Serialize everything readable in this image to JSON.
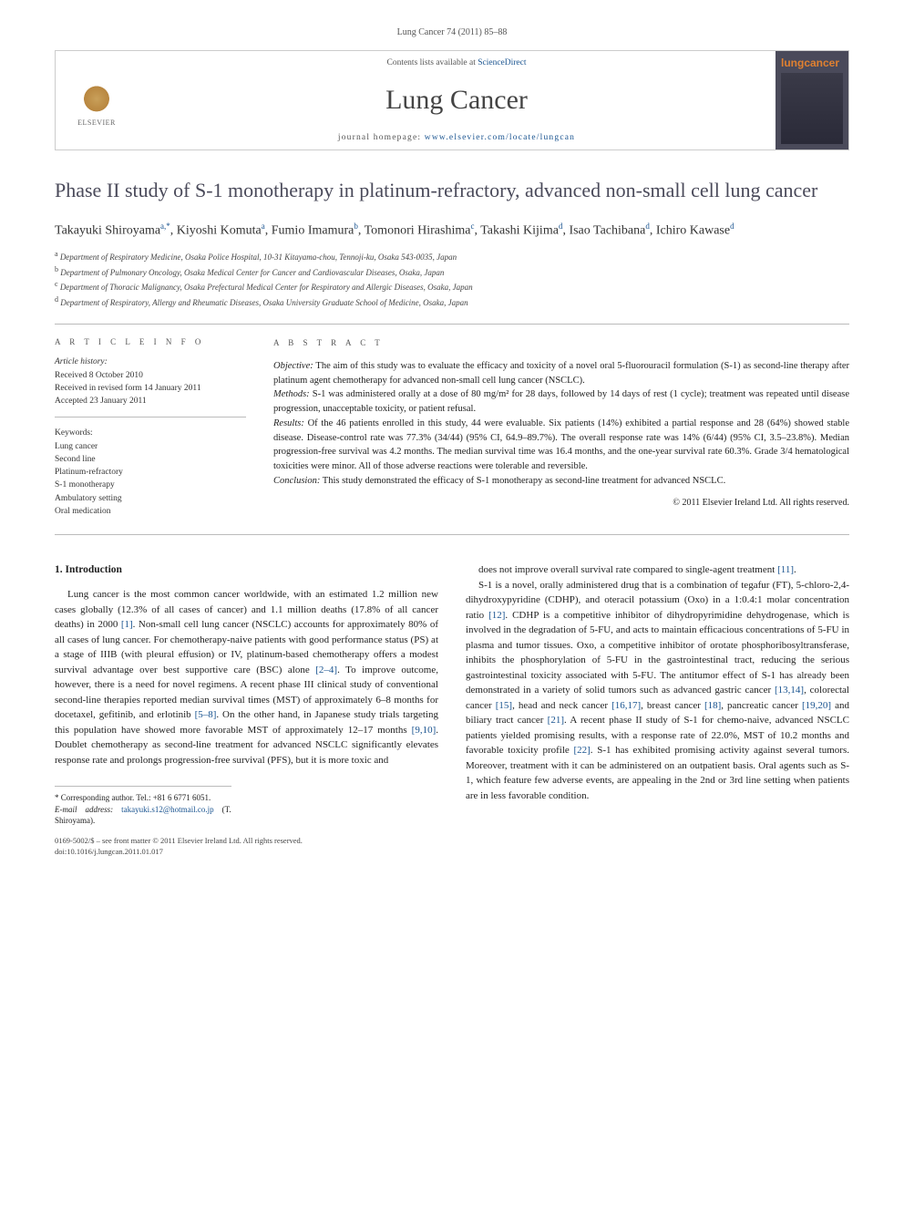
{
  "citation": "Lung Cancer 74 (2011) 85–88",
  "banner": {
    "publisher": "ELSEVIER",
    "contents_prefix": "Contents lists available at ",
    "contents_link": "ScienceDirect",
    "journal": "Lung Cancer",
    "homepage_prefix": "journal homepage: ",
    "homepage_url": "www.elsevier.com/locate/lungcan",
    "cover_label": "lungcancer"
  },
  "title": "Phase II study of S-1 monotherapy in platinum-refractory, advanced non-small cell lung cancer",
  "authors_html": "Takayuki Shiroyama<sup>a,*</sup>, Kiyoshi Komuta<sup>a</sup>, Fumio Imamura<sup>b</sup>, Tomonori Hirashima<sup>c</sup>, Takashi Kijima<sup>d</sup>, Isao Tachibana<sup>d</sup>, Ichiro Kawase<sup>d</sup>",
  "affiliations": [
    "a Department of Respiratory Medicine, Osaka Police Hospital, 10-31 Kitayama-chou, Tennoji-ku, Osaka 543-0035, Japan",
    "b Department of Pulmonary Oncology, Osaka Medical Center for Cancer and Cardiovascular Diseases, Osaka, Japan",
    "c Department of Thoracic Malignancy, Osaka Prefectural Medical Center for Respiratory and Allergic Diseases, Osaka, Japan",
    "d Department of Respiratory, Allergy and Rheumatic Diseases, Osaka University Graduate School of Medicine, Osaka, Japan"
  ],
  "info": {
    "label": "A R T I C L E   I N F O",
    "history_label": "Article history:",
    "history": [
      "Received 8 October 2010",
      "Received in revised form 14 January 2011",
      "Accepted 23 January 2011"
    ],
    "keywords_label": "Keywords:",
    "keywords": [
      "Lung cancer",
      "Second line",
      "Platinum-refractory",
      "S-1 monotherapy",
      "Ambulatory setting",
      "Oral medication"
    ]
  },
  "abstract": {
    "label": "A B S T R A C T",
    "objective_lead": "Objective:",
    "objective": " The aim of this study was to evaluate the efficacy and toxicity of a novel oral 5-fluorouracil formulation (S-1) as second-line therapy after platinum agent chemotherapy for advanced non-small cell lung cancer (NSCLC).",
    "methods_lead": "Methods:",
    "methods": " S-1 was administered orally at a dose of 80 mg/m² for 28 days, followed by 14 days of rest (1 cycle); treatment was repeated until disease progression, unacceptable toxicity, or patient refusal.",
    "results_lead": "Results:",
    "results": " Of the 46 patients enrolled in this study, 44 were evaluable. Six patients (14%) exhibited a partial response and 28 (64%) showed stable disease. Disease-control rate was 77.3% (34/44) (95% CI, 64.9–89.7%). The overall response rate was 14% (6/44) (95% CI, 3.5–23.8%). Median progression-free survival was 4.2 months. The median survival time was 16.4 months, and the one-year survival rate 60.3%. Grade 3/4 hematological toxicities were minor. All of those adverse reactions were tolerable and reversible.",
    "conclusion_lead": "Conclusion:",
    "conclusion": " This study demonstrated the efficacy of S-1 monotherapy as second-line treatment for advanced NSCLC.",
    "copyright": "© 2011 Elsevier Ireland Ltd. All rights reserved."
  },
  "body": {
    "heading": "1. Introduction",
    "col1_p1": "Lung cancer is the most common cancer worldwide, with an estimated 1.2 million new cases globally (12.3% of all cases of cancer) and 1.1 million deaths (17.8% of all cancer deaths) in 2000 [1]. Non-small cell lung cancer (NSCLC) accounts for approximately 80% of all cases of lung cancer. For chemotherapy-naive patients with good performance status (PS) at a stage of IIIB (with pleural effusion) or IV, platinum-based chemotherapy offers a modest survival advantage over best supportive care (BSC) alone [2–4]. To improve outcome, however, there is a need for novel regimens. A recent phase III clinical study of conventional second-line therapies reported median survival times (MST) of approximately 6–8 months for docetaxel, gefitinib, and erlotinib [5–8]. On the other hand, in Japanese study trials targeting this population have showed more favorable MST of approximately 12–17 months [9,10]. Doublet chemotherapy as second-line treatment for advanced NSCLC significantly elevates response rate and prolongs progression-free survival (PFS), but it is more toxic and",
    "col2_p1": "does not improve overall survival rate compared to single-agent treatment [11].",
    "col2_p2": "S-1 is a novel, orally administered drug that is a combination of tegafur (FT), 5-chloro-2,4-dihydroxypyridine (CDHP), and oteracil potassium (Oxo) in a 1:0.4:1 molar concentration ratio [12]. CDHP is a competitive inhibitor of dihydropyrimidine dehydrogenase, which is involved in the degradation of 5-FU, and acts to maintain efficacious concentrations of 5-FU in plasma and tumor tissues. Oxo, a competitive inhibitor of orotate phosphoribosyltransferase, inhibits the phosphorylation of 5-FU in the gastrointestinal tract, reducing the serious gastrointestinal toxicity associated with 5-FU. The antitumor effect of S-1 has already been demonstrated in a variety of solid tumors such as advanced gastric cancer [13,14], colorectal cancer [15], head and neck cancer [16,17], breast cancer [18], pancreatic cancer [19,20] and biliary tract cancer [21]. A recent phase II study of S-1 for chemo-naive, advanced NSCLC patients yielded promising results, with a response rate of 22.0%, MST of 10.2 months and favorable toxicity profile [22]. S-1 has exhibited promising activity against several tumors. Moreover, treatment with it can be administered on an outpatient basis. Oral agents such as S-1, which feature few adverse events, are appealing in the 2nd or 3rd line setting when patients are in less favorable condition."
  },
  "footnotes": {
    "corr": "* Corresponding author. Tel.: +81 6 6771 6051.",
    "email_label": "E-mail address:",
    "email": "takayuki.s12@hotmail.co.jp",
    "email_who": "(T. Shiroyama).",
    "bar1": "0169-5002/$ – see front matter © 2011 Elsevier Ireland Ltd. All rights reserved.",
    "bar2": "doi:10.1016/j.lungcan.2011.01.017"
  },
  "colors": {
    "link": "#1a5490",
    "title": "#4a4a5a",
    "rule": "#bbbbbb"
  }
}
